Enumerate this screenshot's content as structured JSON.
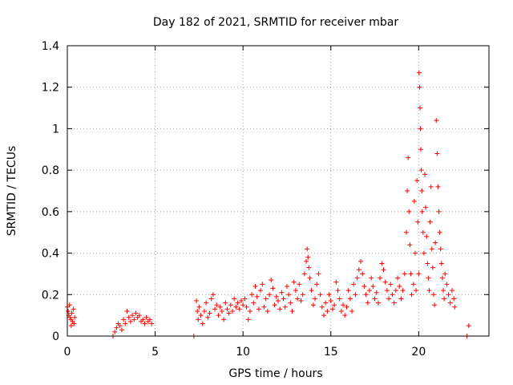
{
  "chart_data": {
    "type": "scatter",
    "title": "Day 182 of 2021, SRMTID for receiver mbar",
    "xlabel": "GPS time / hours",
    "ylabel": "SRMTID / TECUs",
    "xlim": [
      0,
      24
    ],
    "ylim": [
      0,
      1.4
    ],
    "xticks": [
      "0",
      "5",
      "10",
      "15",
      "20"
    ],
    "xtick_values": [
      0,
      5,
      10,
      15,
      20
    ],
    "yticks": [
      "0",
      "0.2",
      "0.4",
      "0.6",
      "0.8",
      "1",
      "1.2",
      "1.4"
    ],
    "ytick_values": [
      0,
      0.2,
      0.4,
      0.6,
      0.8,
      1.0,
      1.2,
      1.4
    ],
    "grid": true,
    "marker": "+",
    "color": "#ff0000",
    "series": [
      {
        "name": "mbar",
        "points": [
          [
            0.0,
            0.14
          ],
          [
            0.05,
            0.12
          ],
          [
            0.08,
            0.1
          ],
          [
            0.12,
            0.15
          ],
          [
            0.15,
            0.09
          ],
          [
            0.2,
            0.08
          ],
          [
            0.22,
            0.05
          ],
          [
            0.25,
            0.11
          ],
          [
            0.3,
            0.07
          ],
          [
            0.35,
            0.13
          ],
          [
            0.38,
            0.06
          ],
          [
            0.42,
            0.09
          ],
          [
            2.6,
            0.0
          ],
          [
            2.7,
            0.02
          ],
          [
            2.8,
            0.04
          ],
          [
            2.9,
            0.06
          ],
          [
            3.0,
            0.05
          ],
          [
            3.1,
            0.03
          ],
          [
            3.2,
            0.08
          ],
          [
            3.3,
            0.06
          ],
          [
            3.4,
            0.12
          ],
          [
            3.5,
            0.09
          ],
          [
            3.6,
            0.07
          ],
          [
            3.7,
            0.1
          ],
          [
            3.8,
            0.08
          ],
          [
            3.9,
            0.11
          ],
          [
            4.0,
            0.09
          ],
          [
            4.1,
            0.1
          ],
          [
            4.2,
            0.07
          ],
          [
            4.3,
            0.08
          ],
          [
            4.4,
            0.06
          ],
          [
            4.5,
            0.09
          ],
          [
            4.6,
            0.07
          ],
          [
            4.7,
            0.08
          ],
          [
            4.8,
            0.06
          ],
          [
            7.2,
            0.0
          ],
          [
            7.35,
            0.17
          ],
          [
            7.4,
            0.12
          ],
          [
            7.45,
            0.08
          ],
          [
            7.5,
            0.14
          ],
          [
            7.6,
            0.1
          ],
          [
            7.7,
            0.06
          ],
          [
            7.8,
            0.12
          ],
          [
            7.9,
            0.16
          ],
          [
            8.0,
            0.09
          ],
          [
            8.1,
            0.11
          ],
          [
            8.2,
            0.18
          ],
          [
            8.3,
            0.2
          ],
          [
            8.4,
            0.13
          ],
          [
            8.5,
            0.15
          ],
          [
            8.6,
            0.1
          ],
          [
            8.7,
            0.14
          ],
          [
            8.8,
            0.12
          ],
          [
            8.9,
            0.08
          ],
          [
            9.0,
            0.16
          ],
          [
            9.1,
            0.13
          ],
          [
            9.2,
            0.11
          ],
          [
            9.3,
            0.15
          ],
          [
            9.4,
            0.12
          ],
          [
            9.5,
            0.18
          ],
          [
            9.6,
            0.14
          ],
          [
            9.7,
            0.16
          ],
          [
            9.8,
            0.13
          ],
          [
            9.9,
            0.17
          ],
          [
            10.0,
            0.15
          ],
          [
            10.1,
            0.18
          ],
          [
            10.2,
            0.14
          ],
          [
            10.3,
            0.08
          ],
          [
            10.4,
            0.12
          ],
          [
            10.5,
            0.2
          ],
          [
            10.6,
            0.16
          ],
          [
            10.7,
            0.24
          ],
          [
            10.8,
            0.19
          ],
          [
            10.9,
            0.13
          ],
          [
            11.0,
            0.22
          ],
          [
            11.1,
            0.25
          ],
          [
            11.2,
            0.14
          ],
          [
            11.3,
            0.18
          ],
          [
            11.4,
            0.12
          ],
          [
            11.5,
            0.2
          ],
          [
            11.6,
            0.27
          ],
          [
            11.7,
            0.23
          ],
          [
            11.8,
            0.15
          ],
          [
            11.9,
            0.19
          ],
          [
            12.0,
            0.17
          ],
          [
            12.1,
            0.13
          ],
          [
            12.2,
            0.21
          ],
          [
            12.3,
            0.18
          ],
          [
            12.4,
            0.14
          ],
          [
            12.5,
            0.24
          ],
          [
            12.6,
            0.2
          ],
          [
            12.7,
            0.16
          ],
          [
            12.8,
            0.12
          ],
          [
            12.9,
            0.26
          ],
          [
            13.0,
            0.22
          ],
          [
            13.1,
            0.18
          ],
          [
            13.2,
            0.25
          ],
          [
            13.3,
            0.17
          ],
          [
            13.4,
            0.2
          ],
          [
            13.5,
            0.3
          ],
          [
            13.6,
            0.36
          ],
          [
            13.65,
            0.42
          ],
          [
            13.7,
            0.38
          ],
          [
            13.75,
            0.33
          ],
          [
            13.8,
            0.28
          ],
          [
            13.9,
            0.22
          ],
          [
            14.0,
            0.15
          ],
          [
            14.1,
            0.18
          ],
          [
            14.2,
            0.25
          ],
          [
            14.3,
            0.3
          ],
          [
            14.4,
            0.2
          ],
          [
            14.5,
            0.14
          ],
          [
            14.6,
            0.1
          ],
          [
            14.7,
            0.16
          ],
          [
            14.8,
            0.12
          ],
          [
            14.9,
            0.2
          ],
          [
            15.0,
            0.17
          ],
          [
            15.1,
            0.13
          ],
          [
            15.2,
            0.15
          ],
          [
            15.3,
            0.26
          ],
          [
            15.4,
            0.22
          ],
          [
            15.5,
            0.18
          ],
          [
            15.6,
            0.12
          ],
          [
            15.7,
            0.15
          ],
          [
            15.8,
            0.1
          ],
          [
            15.9,
            0.14
          ],
          [
            16.0,
            0.22
          ],
          [
            16.1,
            0.18
          ],
          [
            16.2,
            0.12
          ],
          [
            16.3,
            0.25
          ],
          [
            16.4,
            0.2
          ],
          [
            16.5,
            0.28
          ],
          [
            16.6,
            0.32
          ],
          [
            16.7,
            0.36
          ],
          [
            16.8,
            0.3
          ],
          [
            16.9,
            0.24
          ],
          [
            17.0,
            0.2
          ],
          [
            17.1,
            0.16
          ],
          [
            17.2,
            0.22
          ],
          [
            17.3,
            0.28
          ],
          [
            17.4,
            0.24
          ],
          [
            17.5,
            0.18
          ],
          [
            17.6,
            0.21
          ],
          [
            17.7,
            0.16
          ],
          [
            17.8,
            0.28
          ],
          [
            17.9,
            0.35
          ],
          [
            18.0,
            0.32
          ],
          [
            18.1,
            0.26
          ],
          [
            18.2,
            0.22
          ],
          [
            18.3,
            0.18
          ],
          [
            18.4,
            0.25
          ],
          [
            18.5,
            0.2
          ],
          [
            18.6,
            0.16
          ],
          [
            18.7,
            0.22
          ],
          [
            18.8,
            0.28
          ],
          [
            18.9,
            0.24
          ],
          [
            19.0,
            0.18
          ],
          [
            19.1,
            0.22
          ],
          [
            19.2,
            0.3
          ],
          [
            19.3,
            0.5
          ],
          [
            19.35,
            0.7
          ],
          [
            19.4,
            0.86
          ],
          [
            19.45,
            0.6
          ],
          [
            19.5,
            0.44
          ],
          [
            19.55,
            0.3
          ],
          [
            19.6,
            0.2
          ],
          [
            19.7,
            0.25
          ],
          [
            19.75,
            0.65
          ],
          [
            19.8,
            0.4
          ],
          [
            19.85,
            0.22
          ],
          [
            19.9,
            0.75
          ],
          [
            19.95,
            0.55
          ],
          [
            20.0,
            0.3
          ],
          [
            20.02,
            1.27
          ],
          [
            20.05,
            1.2
          ],
          [
            20.08,
            1.1
          ],
          [
            20.1,
            1.0
          ],
          [
            20.12,
            0.9
          ],
          [
            20.15,
            0.8
          ],
          [
            20.18,
            0.7
          ],
          [
            20.2,
            0.6
          ],
          [
            20.25,
            0.5
          ],
          [
            20.3,
            0.4
          ],
          [
            20.35,
            0.78
          ],
          [
            20.4,
            0.62
          ],
          [
            20.45,
            0.48
          ],
          [
            20.5,
            0.35
          ],
          [
            20.55,
            0.28
          ],
          [
            20.6,
            0.22
          ],
          [
            20.65,
            0.55
          ],
          [
            20.7,
            0.72
          ],
          [
            20.75,
            0.42
          ],
          [
            20.8,
            0.33
          ],
          [
            20.85,
            0.2
          ],
          [
            20.9,
            0.15
          ],
          [
            20.95,
            0.45
          ],
          [
            21.0,
            1.04
          ],
          [
            21.05,
            0.88
          ],
          [
            21.1,
            0.72
          ],
          [
            21.15,
            0.6
          ],
          [
            21.2,
            0.5
          ],
          [
            21.25,
            0.42
          ],
          [
            21.3,
            0.35
          ],
          [
            21.35,
            0.28
          ],
          [
            21.4,
            0.22
          ],
          [
            21.45,
            0.18
          ],
          [
            21.5,
            0.3
          ],
          [
            21.6,
            0.25
          ],
          [
            21.7,
            0.2
          ],
          [
            21.8,
            0.16
          ],
          [
            21.9,
            0.22
          ],
          [
            22.0,
            0.18
          ],
          [
            22.05,
            0.14
          ],
          [
            22.75,
            0.0
          ],
          [
            22.85,
            0.05
          ]
        ]
      }
    ]
  }
}
